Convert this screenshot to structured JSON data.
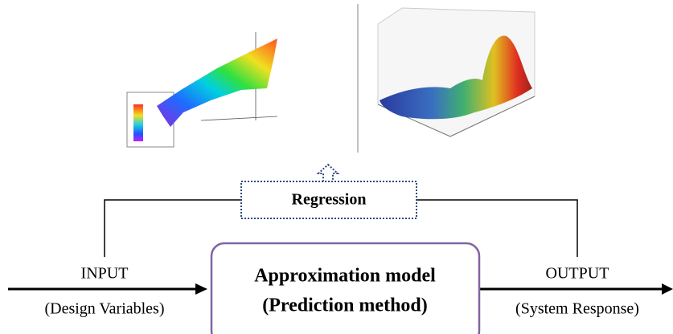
{
  "regression": "Regression",
  "input": {
    "label": "INPUT",
    "sub": "(Design Variables)"
  },
  "output": {
    "label": "OUTPUT",
    "sub": "(System Response)"
  },
  "model": {
    "line1": "Approximation model",
    "line2": "(Prediction method)"
  }
}
